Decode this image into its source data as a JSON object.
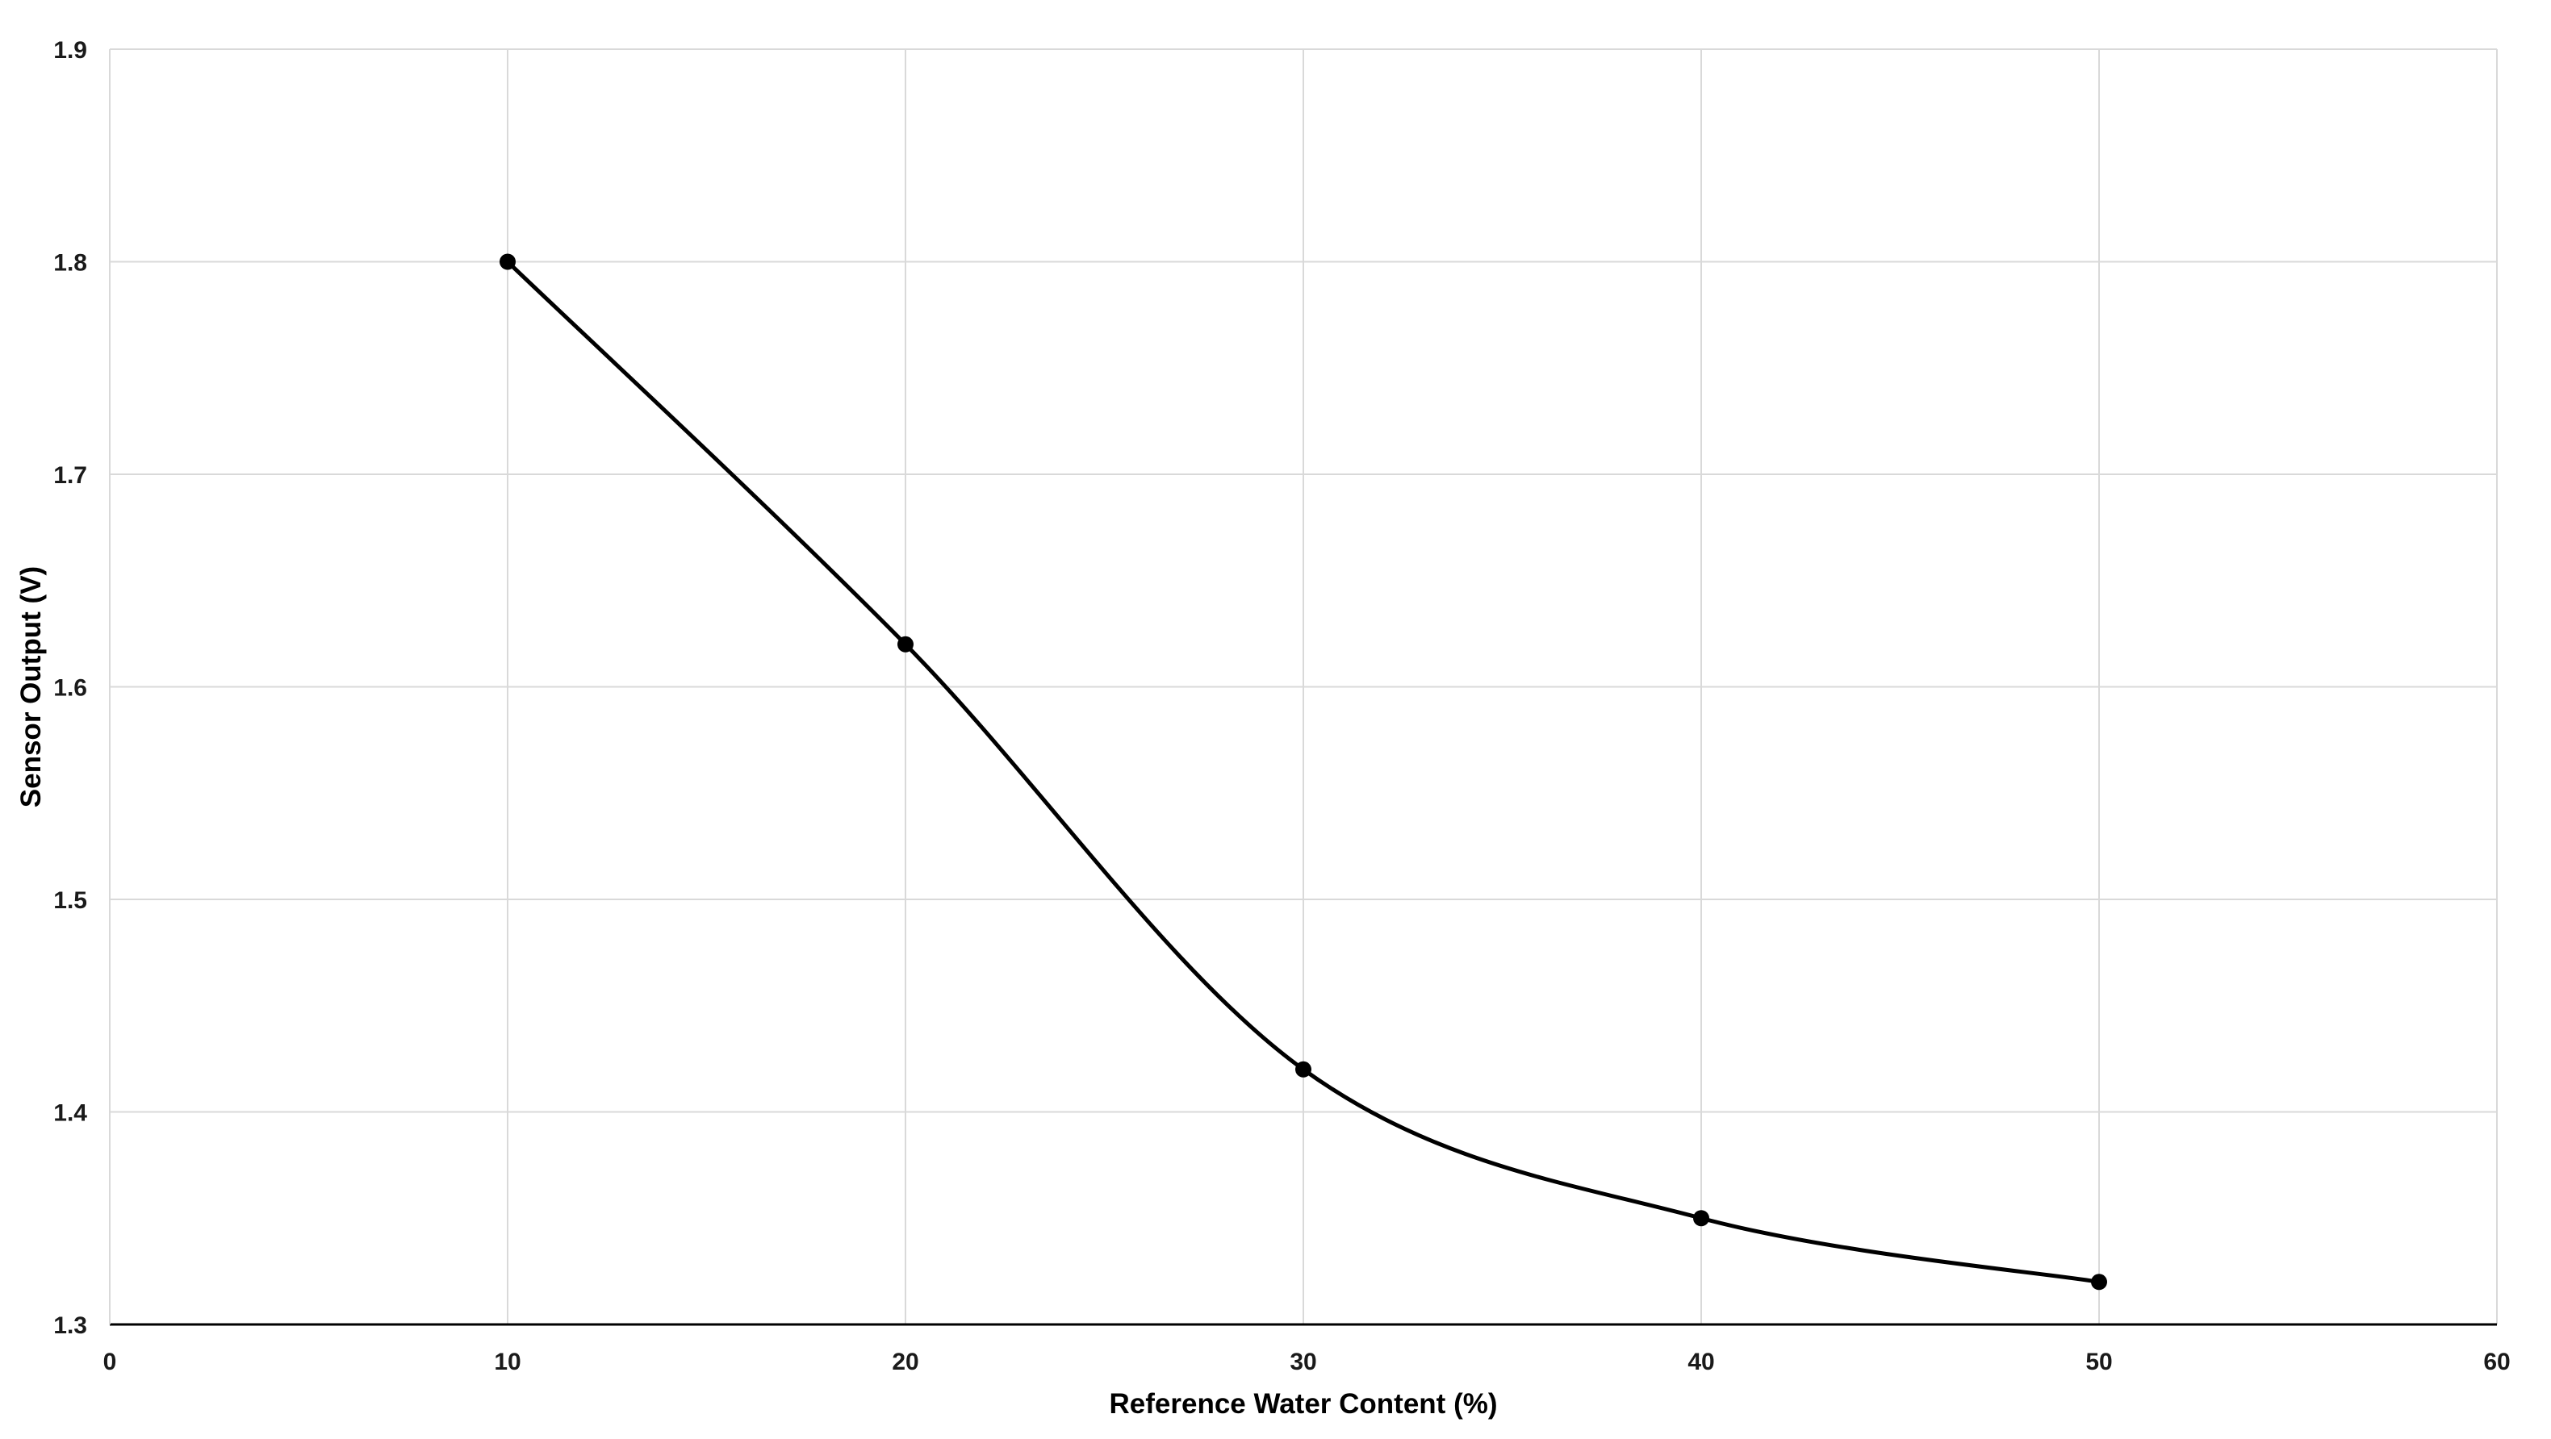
{
  "chart_data": {
    "type": "line",
    "title": "",
    "xlabel": "Reference Water Content (%)",
    "ylabel": "Sensor Output (V)",
    "xlim": [
      0,
      60
    ],
    "ylim": [
      1.3,
      1.9
    ],
    "x_ticks": [
      "0",
      "10",
      "20",
      "30",
      "40",
      "50",
      "60"
    ],
    "y_ticks": [
      "1.3",
      "1.4",
      "1.5",
      "1.6",
      "1.7",
      "1.8",
      "1.9"
    ],
    "grid": true,
    "smoothed": true,
    "legend": "none",
    "series": [
      {
        "x": [
          10,
          20,
          30,
          40,
          50
        ],
        "values": [
          1.8,
          1.62,
          1.42,
          1.35,
          1.32
        ],
        "color": "#000000",
        "marker": "circle"
      }
    ]
  }
}
